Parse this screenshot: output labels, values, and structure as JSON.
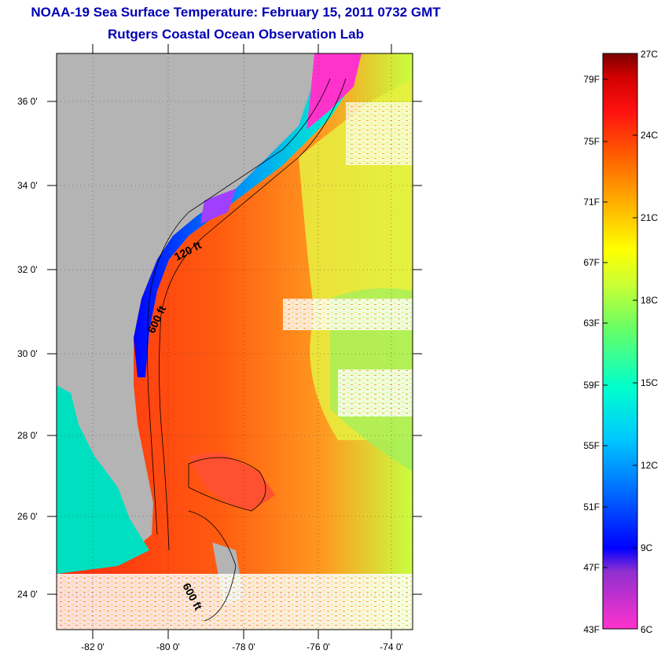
{
  "header": {
    "title": "NOAA-19 Sea Surface Temperature:  February 15, 2011 0732 GMT",
    "subtitle": "Rutgers Coastal Ocean Observation Lab"
  },
  "map": {
    "lat_ticks": [
      "36 0'",
      "34 0'",
      "32 0'",
      "30 0'",
      "28 0'",
      "26 0'",
      "24 0'"
    ],
    "lon_ticks": [
      "-82 0'",
      "-80 0'",
      "-78 0'",
      "-76 0'",
      "-74 0'"
    ],
    "contour_labels": [
      "120 ft",
      "600 ft",
      "600 ft"
    ],
    "colors": {
      "land": "#b4b4b4",
      "title": "#0000b4"
    }
  },
  "colorbar": {
    "fahrenheit": [
      "79F",
      "75F",
      "71F",
      "67F",
      "63F",
      "59F",
      "55F",
      "51F",
      "47F",
      "43F"
    ],
    "celsius": [
      "27C",
      "24C",
      "21C",
      "18C",
      "15C",
      "12C",
      "9C",
      "6C"
    ],
    "gradient": [
      "#ff33cc",
      "#8f2fd0",
      "#0000ff",
      "#0077ff",
      "#00c8ff",
      "#00ffcc",
      "#66ff66",
      "#ccff33",
      "#ffff00",
      "#ffb000",
      "#ff6000",
      "#ff1010",
      "#d00000",
      "#7a0000"
    ]
  }
}
